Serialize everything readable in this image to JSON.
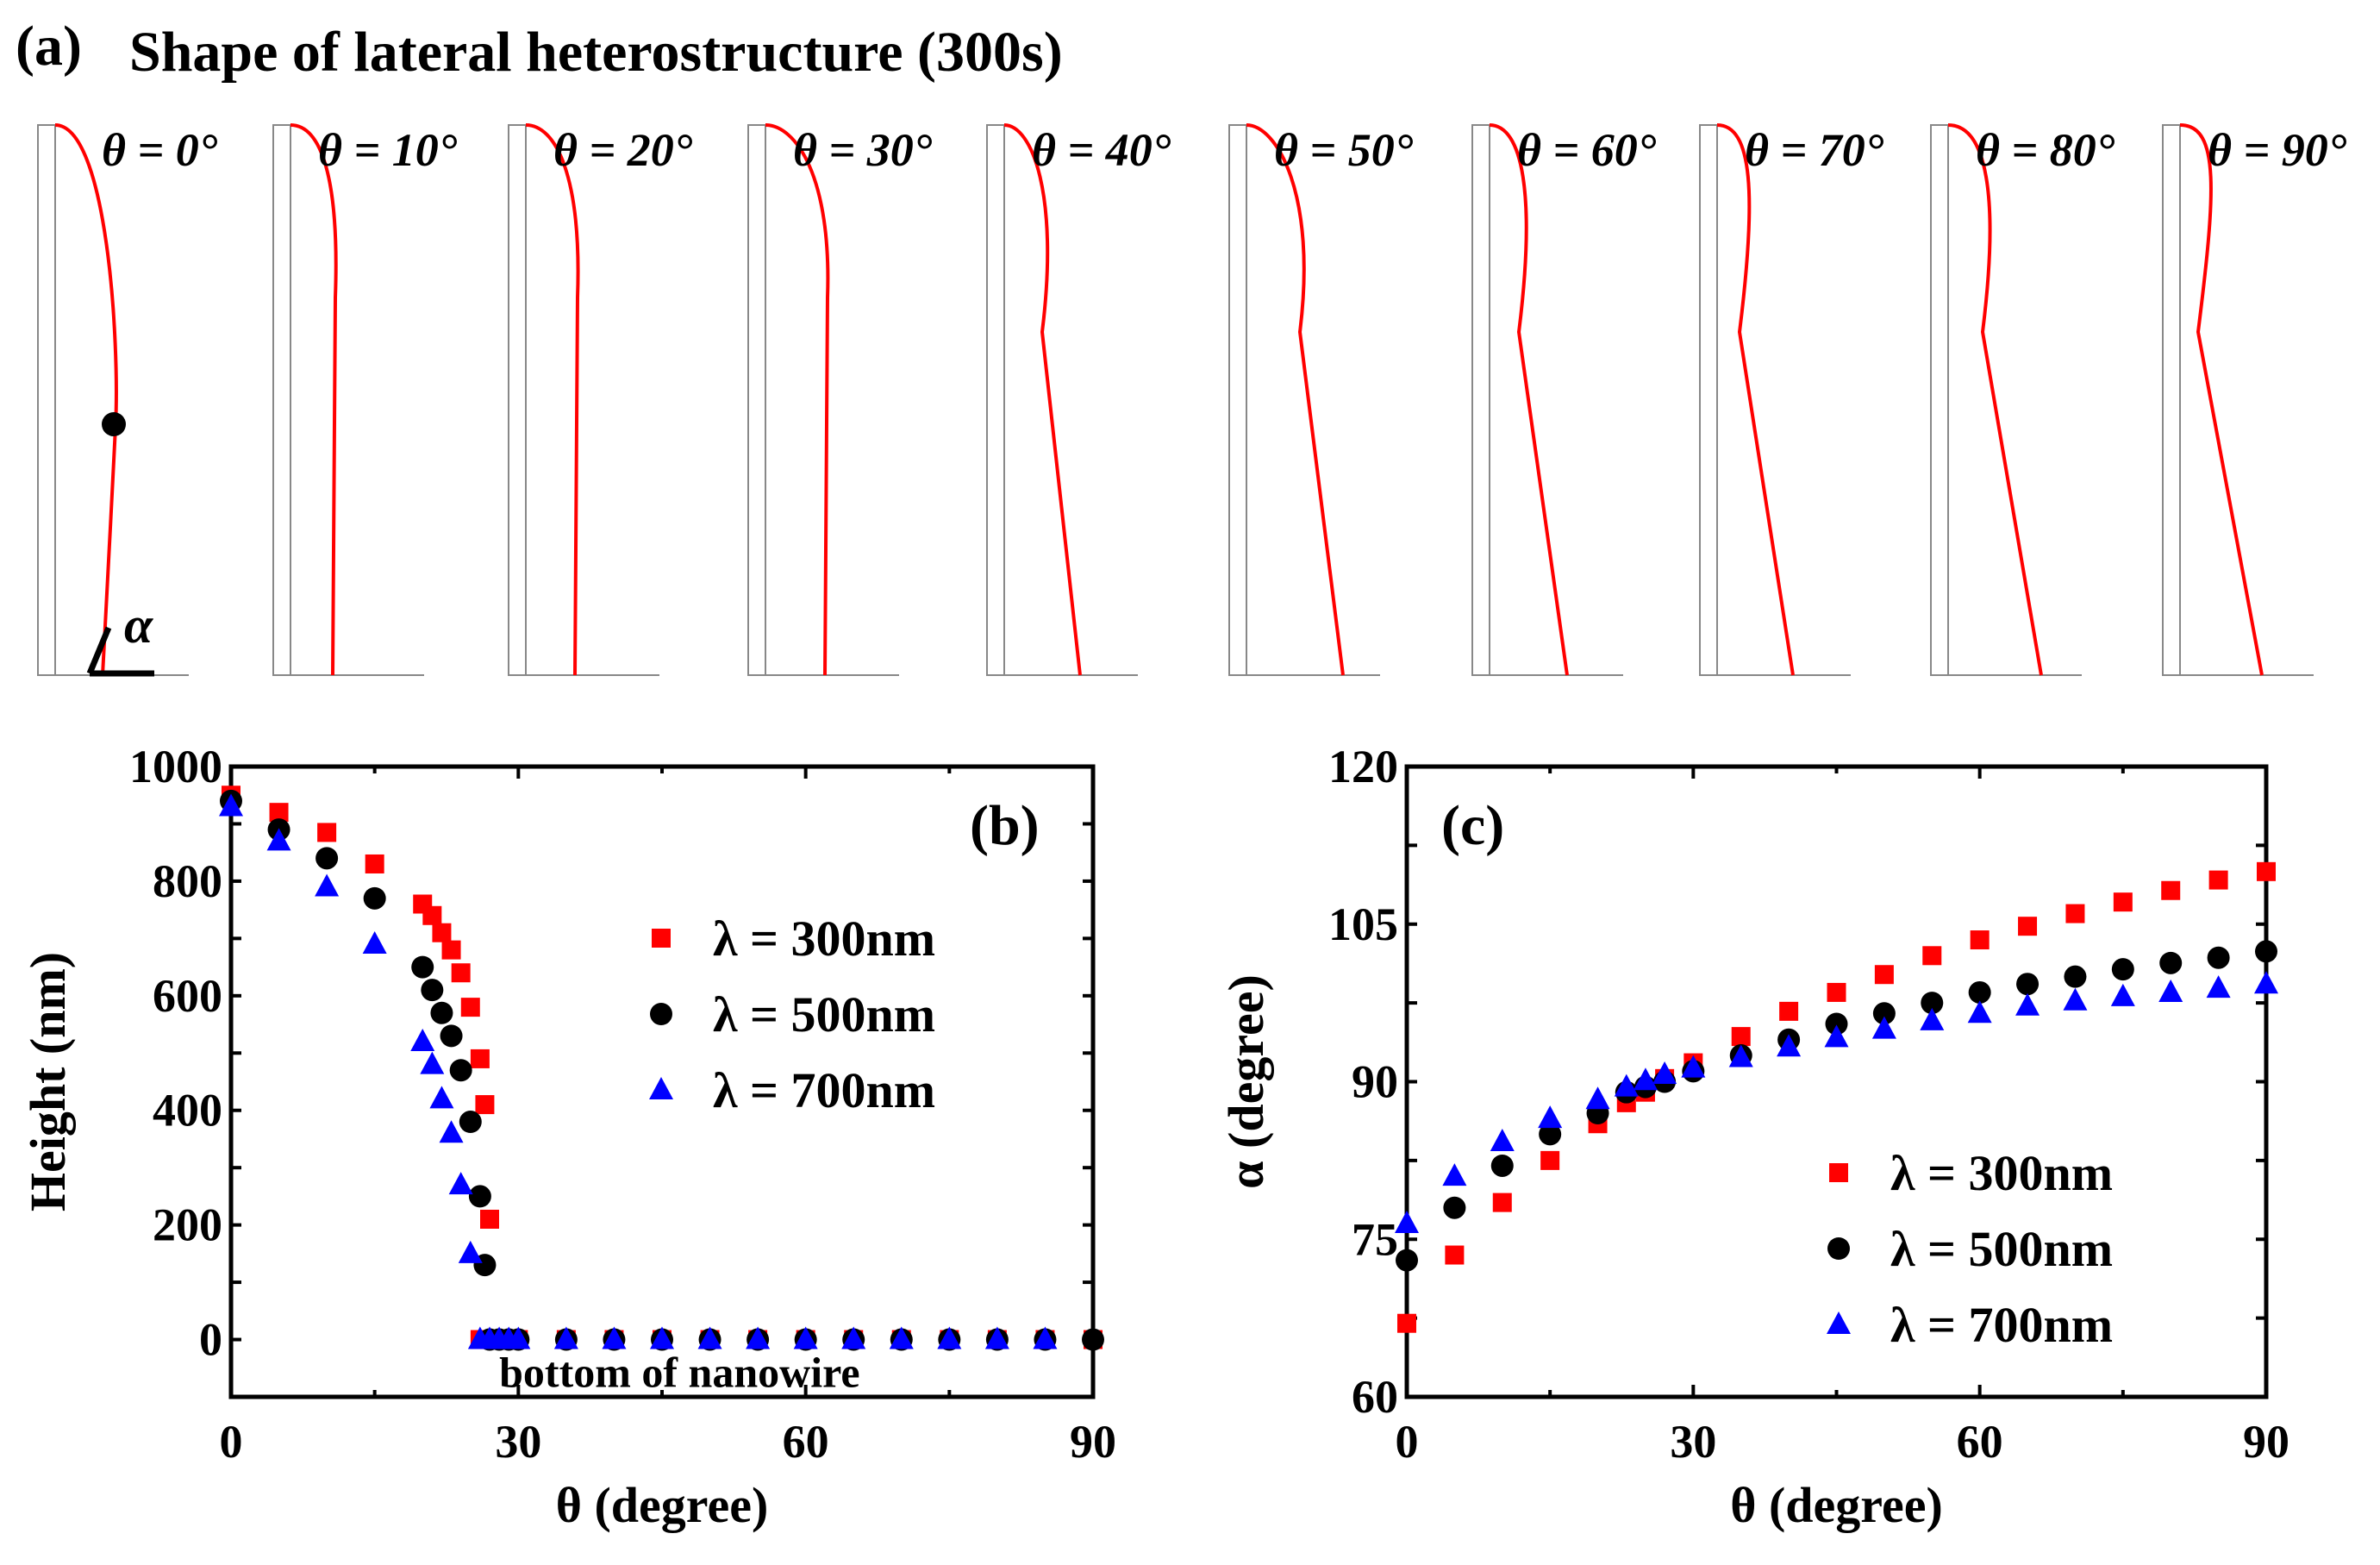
{
  "panel_a": {
    "label": "(a)",
    "title": "Shape of lateral heterostructure (300s)",
    "alpha_symbol": "α",
    "angles": [
      "θ = 0°",
      "θ = 10°",
      "θ = 20°",
      "θ = 30°",
      "θ = 40°",
      "θ = 50°",
      "θ = 60°",
      "θ = 70°",
      "θ = 80°",
      "θ = 90°"
    ]
  },
  "colors": {
    "s300": "#ff0000",
    "s500": "#000000",
    "s700": "#0000ff"
  },
  "chart_data": [
    {
      "type": "scatter",
      "panel_label": "(b)",
      "xlabel": "θ (degree)",
      "ylabel": "Height (nm)",
      "xlim": [
        0,
        90
      ],
      "ylim": [
        -100,
        1000
      ],
      "xticks": [
        "0",
        "30",
        "60",
        "90"
      ],
      "xtick_values": [
        0,
        30,
        60,
        90
      ],
      "yticks": [
        "0",
        "200",
        "400",
        "600",
        "800",
        "1000"
      ],
      "ytick_values": [
        0,
        200,
        400,
        600,
        800,
        1000
      ],
      "annotation": "bottom of nanowire",
      "legend_position": "center-right",
      "series": [
        {
          "name": "λ = 300nm",
          "marker": "square",
          "x": [
            0,
            5,
            10,
            15,
            20,
            21,
            22,
            23,
            24,
            25,
            26,
            26.5,
            27,
            26,
            27,
            28,
            29,
            30,
            35,
            40,
            45,
            50,
            55,
            60,
            65,
            70,
            75,
            80,
            85,
            90
          ],
          "y": [
            950,
            920,
            885,
            830,
            760,
            740,
            710,
            680,
            640,
            580,
            490,
            410,
            210,
            0,
            0,
            0,
            0,
            0,
            0,
            0,
            0,
            0,
            0,
            0,
            0,
            0,
            0,
            0,
            0,
            0
          ]
        },
        {
          "name": "λ = 500nm",
          "marker": "circle",
          "x": [
            0,
            5,
            10,
            15,
            20,
            21,
            22,
            23,
            24,
            25,
            26,
            26.5,
            27,
            28,
            29,
            30,
            35,
            40,
            45,
            50,
            55,
            60,
            65,
            70,
            75,
            80,
            85,
            90
          ],
          "y": [
            940,
            890,
            840,
            770,
            650,
            610,
            570,
            530,
            470,
            380,
            250,
            130,
            0,
            0,
            0,
            0,
            0,
            0,
            0,
            0,
            0,
            0,
            0,
            0,
            0,
            0,
            0,
            0
          ]
        },
        {
          "name": "λ = 700nm",
          "marker": "triangle",
          "x": [
            0,
            5,
            10,
            15,
            20,
            21,
            22,
            23,
            24,
            25,
            26,
            27,
            28,
            29,
            30,
            35,
            40,
            45,
            50,
            55,
            60,
            65,
            70,
            75,
            80,
            85
          ],
          "y": [
            930,
            870,
            790,
            690,
            520,
            480,
            420,
            360,
            270,
            150,
            0,
            0,
            0,
            0,
            0,
            0,
            0,
            0,
            0,
            0,
            0,
            0,
            0,
            0,
            0,
            0
          ]
        }
      ]
    },
    {
      "type": "scatter",
      "panel_label": "(c)",
      "xlabel": "θ (degree)",
      "ylabel": "α (degree)",
      "xlim": [
        0,
        90
      ],
      "ylim": [
        60,
        120
      ],
      "xticks": [
        "0",
        "30",
        "60",
        "90"
      ],
      "xtick_values": [
        0,
        30,
        60,
        90
      ],
      "yticks": [
        "60",
        "75",
        "90",
        "105",
        "120"
      ],
      "ytick_values": [
        60,
        75,
        90,
        105,
        120
      ],
      "legend_position": "bottom-right",
      "series": [
        {
          "name": "λ = 300nm",
          "marker": "square",
          "x": [
            0,
            5,
            10,
            15,
            20,
            23,
            25,
            27,
            30,
            35,
            40,
            45,
            50,
            55,
            60,
            65,
            70,
            75,
            80,
            85,
            90
          ],
          "y": [
            67,
            73.5,
            78.5,
            82.5,
            86,
            88,
            89,
            90.3,
            91.8,
            94.3,
            96.7,
            98.5,
            100.2,
            102,
            103.5,
            104.8,
            106,
            107.1,
            108.2,
            109.2,
            110
          ]
        },
        {
          "name": "λ = 500nm",
          "marker": "circle",
          "x": [
            0,
            5,
            10,
            15,
            20,
            23,
            25,
            27,
            30,
            35,
            40,
            45,
            50,
            55,
            60,
            65,
            70,
            75,
            80,
            85,
            90
          ],
          "y": [
            73,
            78,
            82,
            85,
            87,
            89,
            89.5,
            90,
            91,
            92.5,
            94,
            95.5,
            96.5,
            97.5,
            98.5,
            99.3,
            100,
            100.7,
            101.3,
            101.8,
            102.4
          ]
        },
        {
          "name": "λ = 700nm",
          "marker": "triangle",
          "x": [
            0,
            5,
            10,
            15,
            20,
            23,
            25,
            27,
            30,
            35,
            40,
            45,
            50,
            55,
            60,
            65,
            70,
            75,
            80,
            85,
            90
          ],
          "y": [
            76.5,
            81,
            84.3,
            86.5,
            88.3,
            89.5,
            90.1,
            90.7,
            91.3,
            92.3,
            93.3,
            94.2,
            95,
            95.8,
            96.5,
            97.2,
            97.7,
            98.1,
            98.5,
            98.9,
            99.3
          ]
        }
      ]
    }
  ]
}
